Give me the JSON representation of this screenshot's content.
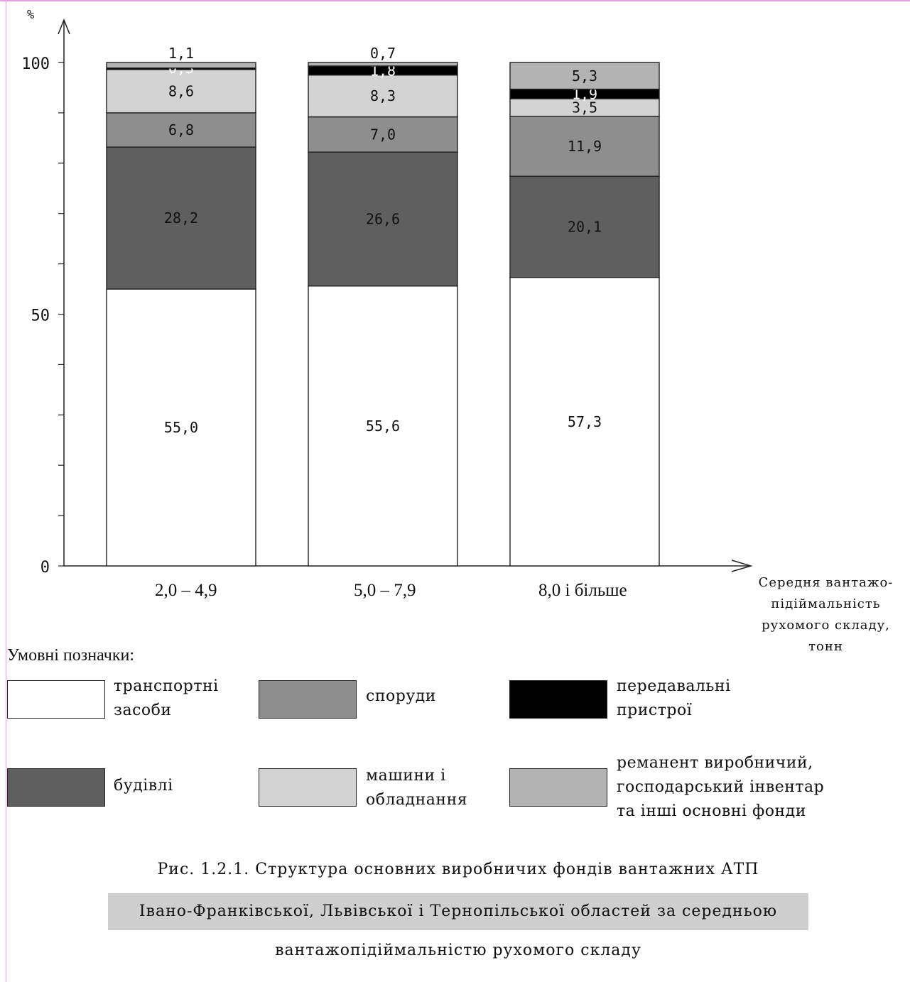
{
  "chart_data": {
    "type": "bar",
    "stacked": true,
    "y_unit_label": "%",
    "ylim": [
      0,
      100
    ],
    "yticks_labeled": [
      0,
      50,
      100
    ],
    "categories": [
      "2,0 – 4,9",
      "5,0 – 7,9",
      "8,0 і більше"
    ],
    "xlabel": "Середня вантажо-підіймальність рухомого складу, тонн",
    "series": [
      {
        "name": "транспортні засоби",
        "color": "#ffffff",
        "values": [
          55.0,
          55.6,
          57.3
        ],
        "labels": [
          "55,0",
          "55,6",
          "57,3"
        ]
      },
      {
        "name": "будівлі",
        "color": "#5f5f5f",
        "values": [
          28.2,
          26.6,
          20.1
        ],
        "labels": [
          "28,2",
          "26,6",
          "20,1"
        ]
      },
      {
        "name": "споруди",
        "color": "#8e8e8e",
        "values": [
          6.8,
          7.0,
          11.9
        ],
        "labels": [
          "6,8",
          "7,0",
          "11,9"
        ]
      },
      {
        "name": "машини і обладнання",
        "color": "#d3d3d3",
        "values": [
          8.6,
          8.3,
          3.5
        ],
        "labels": [
          "8,6",
          "8,3",
          "3,5"
        ]
      },
      {
        "name": "передавальні пристрої",
        "color": "#000000",
        "values": [
          0.3,
          1.8,
          1.9
        ],
        "labels": [
          "0,3",
          "1,8",
          "1,9"
        ]
      },
      {
        "name": "реманент виробничий, господарський інвентар та інші основні фонди",
        "color": "#b3b3b3",
        "values": [
          1.1,
          0.7,
          5.3
        ],
        "labels": [
          "1,1",
          "0,7",
          "5,3"
        ]
      }
    ]
  },
  "legend": {
    "title": "Умовні позначки:",
    "items": [
      {
        "lines": [
          "транспортні",
          "засоби"
        ],
        "color": "#ffffff"
      },
      {
        "lines": [
          "споруди"
        ],
        "color": "#8e8e8e"
      },
      {
        "lines": [
          "передавальні",
          "пристрої"
        ],
        "color": "#000000"
      },
      {
        "lines": [
          "будівлі"
        ],
        "color": "#5f5f5f"
      },
      {
        "lines": [
          "машини і",
          "обладнання"
        ],
        "color": "#d3d3d3"
      },
      {
        "lines": [
          "реманент виробничий,",
          "господарський інвентар",
          "та інші основні фонди"
        ],
        "color": "#b3b3b3"
      }
    ]
  },
  "xaxis_title_lines": [
    "Середня вантажо-",
    "підіймальність",
    "рухомого складу,",
    "тонн"
  ],
  "caption": {
    "line1": "Рис. 1.2.1. Структура основних виробничих фондів вантажних АТП",
    "line2": "Івано-Франківської, Львівської і Тернопільської областей за середньою",
    "line3": "вантажопідіймальністю рухомого складу"
  }
}
